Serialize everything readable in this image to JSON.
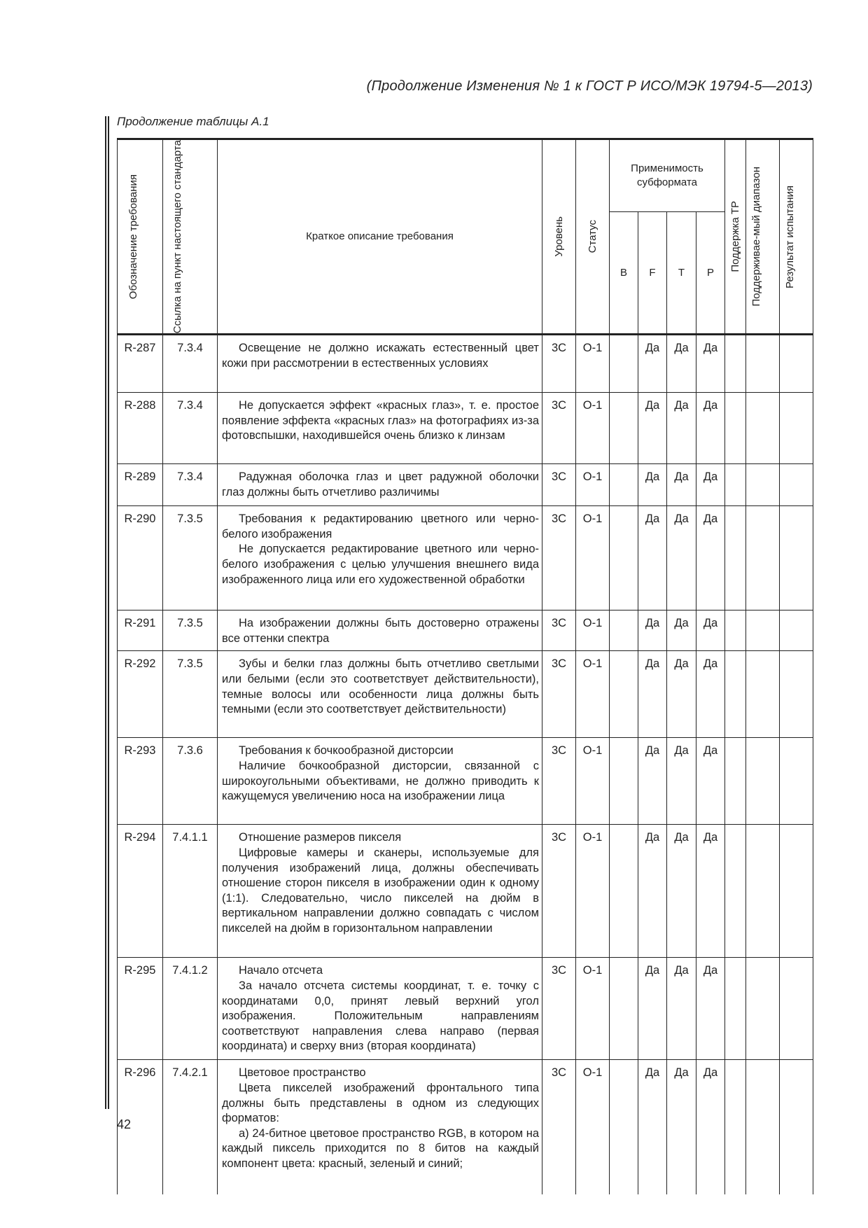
{
  "running_header": "(Продолжение Изменения № 1 к ГОСТ Р ИСО/МЭК 19794-5—2013)",
  "table_caption": "Продолжение таблицы А.1",
  "columns": {
    "id": "Обозначение требования",
    "ref": "Ссылка на пункт настоящего стандарта",
    "desc": "Краткое описание требования",
    "level": "Уровень",
    "status": "Статус",
    "applicability": "Применимость субформата",
    "sub": [
      "B",
      "F",
      "T",
      "P"
    ],
    "tp": "Поддержка ТР",
    "range": "Поддерживае-мый диапазон",
    "result": "Результат испытания"
  },
  "rows": [
    {
      "id": "R-287",
      "ref": "7.3.4",
      "desc": [
        "Освещение не должно искажать естественный цвет кожи при рассмотрении в естественных условиях"
      ],
      "level": "3С",
      "status": "О-1",
      "b": "",
      "f": "Да",
      "t": "Да",
      "p": "Да"
    },
    {
      "id": "R-288",
      "ref": "7.3.4",
      "desc": [
        "Не допускается эффект «красных глаз», т. е. простое появление эффекта «красных глаз» на фотографиях из-за фотовспышки, находившейся очень близко к линзам"
      ],
      "level": "3С",
      "status": "О-1",
      "b": "",
      "f": "Да",
      "t": "Да",
      "p": "Да"
    },
    {
      "id": "R-289",
      "ref": "7.3.4",
      "desc": [
        "Радужная оболочка глаз и цвет радужной оболочки глаз должны быть отчетливо различимы"
      ],
      "level": "3С",
      "status": "О-1",
      "b": "",
      "f": "Да",
      "t": "Да",
      "p": "Да"
    },
    {
      "id": "R-290",
      "ref": "7.3.5",
      "desc": [
        "Требования к редактированию цветного или черно-белого изображения",
        "Не допускается редактирование цветного или черно-белого изображения с целью улучшения внешнего вида изображенного лица или его художественной обработки"
      ],
      "level": "3С",
      "status": "О-1",
      "b": "",
      "f": "Да",
      "t": "Да",
      "p": "Да"
    },
    {
      "id": "R-291",
      "ref": "7.3.5",
      "desc": [
        "На изображении должны быть достоверно отражены все оттенки спектра"
      ],
      "level": "3С",
      "status": "О-1",
      "b": "",
      "f": "Да",
      "t": "Да",
      "p": "Да"
    },
    {
      "id": "R-292",
      "ref": "7.3.5",
      "desc": [
        "Зубы и белки глаз должны быть отчетливо светлыми или белыми (если это соответствует действительности), темные волосы или особенности лица должны быть темными (если это соответствует действительности)"
      ],
      "level": "3С",
      "status": "О-1",
      "b": "",
      "f": "Да",
      "t": "Да",
      "p": "Да"
    },
    {
      "id": "R-293",
      "ref": "7.3.6",
      "desc": [
        "Требования к бочкообразной дисторсии",
        "Наличие бочкообразной дисторсии, связанной с широкоугольными объективами, не должно приводить к кажущемуся увеличению носа на изображении лица"
      ],
      "level": "3С",
      "status": "О-1",
      "b": "",
      "f": "Да",
      "t": "Да",
      "p": "Да"
    },
    {
      "id": "R-294",
      "ref": "7.4.1.1",
      "desc": [
        "Отношение размеров пикселя",
        "Цифровые камеры и сканеры, используемые для получения изображений лица, должны обеспечивать отношение сторон пикселя в изображении один к одному (1:1). Следовательно, число пикселей на дюйм в вертикальном направлении должно совпадать с числом пикселей на дюйм в горизонтальном направлении"
      ],
      "level": "3С",
      "status": "О-1",
      "b": "",
      "f": "Да",
      "t": "Да",
      "p": "Да"
    },
    {
      "id": "R-295",
      "ref": "7.4.1.2",
      "desc": [
        "Начало отсчета",
        "За начало отсчета системы координат, т. е. точку с координатами 0,0, принят левый верхний угол изображения. Положительным направлениям соответствуют направления слева направо (первая координата) и сверху вниз (вторая координата)"
      ],
      "level": "3С",
      "status": "О-1",
      "b": "",
      "f": "Да",
      "t": "Да",
      "p": "Да"
    },
    {
      "id": "R-296",
      "ref": "7.4.2.1",
      "desc": [
        "Цветовое пространство",
        "Цвета пикселей изображений фронтального типа должны быть представлены в одном из следующих форматов:",
        "а) 24-битное цветовое пространство RGB, в котором на каждый пиксель приходится по 8 битов на каждый компонент цвета: красный, зеленый и синий;"
      ],
      "level": "3С",
      "status": "О-1",
      "b": "",
      "f": "Да",
      "t": "Да",
      "p": "Да"
    }
  ],
  "page_number": "42"
}
